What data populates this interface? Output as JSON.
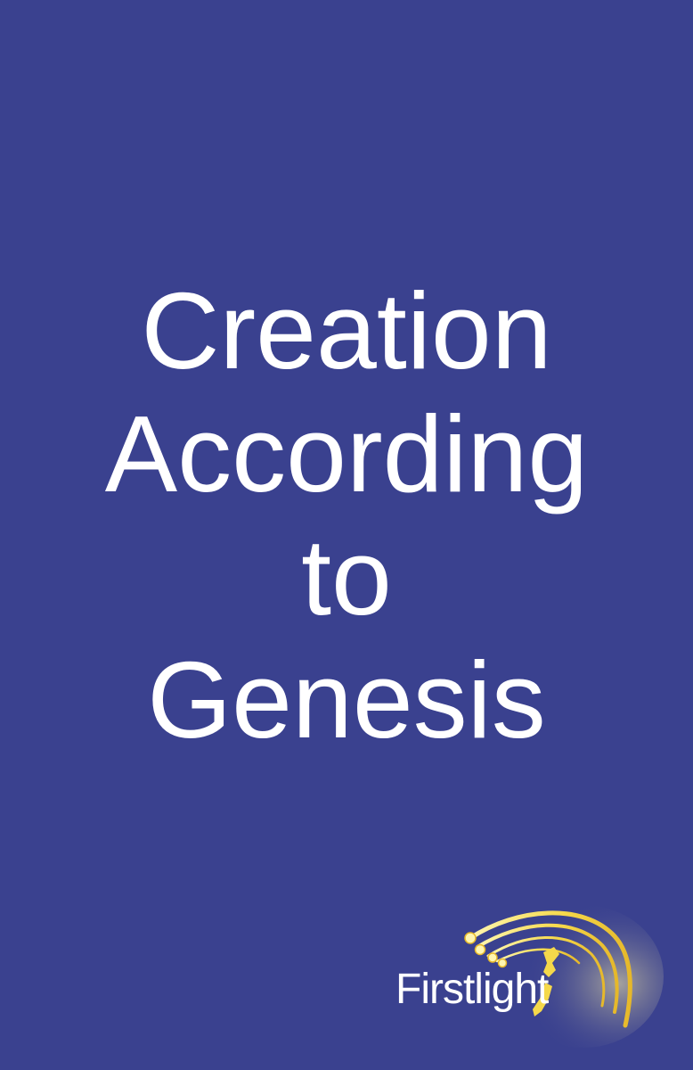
{
  "cover": {
    "background_color": "#3a418f",
    "title_lines": [
      "Creation",
      "According",
      "to",
      "Genesis"
    ]
  },
  "logo": {
    "brand_name": "Firstlight",
    "accent_color": "#f5d84a",
    "icon": "comet-rays-icon"
  }
}
